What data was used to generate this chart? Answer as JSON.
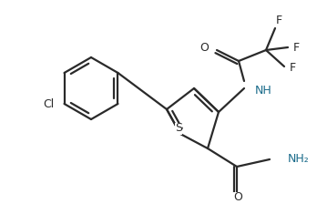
{
  "bg_color": "#ffffff",
  "line_color": "#2a2a2a",
  "text_color": "#2a2a2a",
  "atom_colors": {
    "S": "#2a2a2a",
    "N": "#1a6b8a",
    "O": "#2a2a2a",
    "Cl": "#2a2a2a",
    "F": "#2a2a2a",
    "C": "#2a2a2a"
  },
  "linewidth": 1.6,
  "fig_width": 3.48,
  "fig_height": 2.35,
  "dpi": 100
}
